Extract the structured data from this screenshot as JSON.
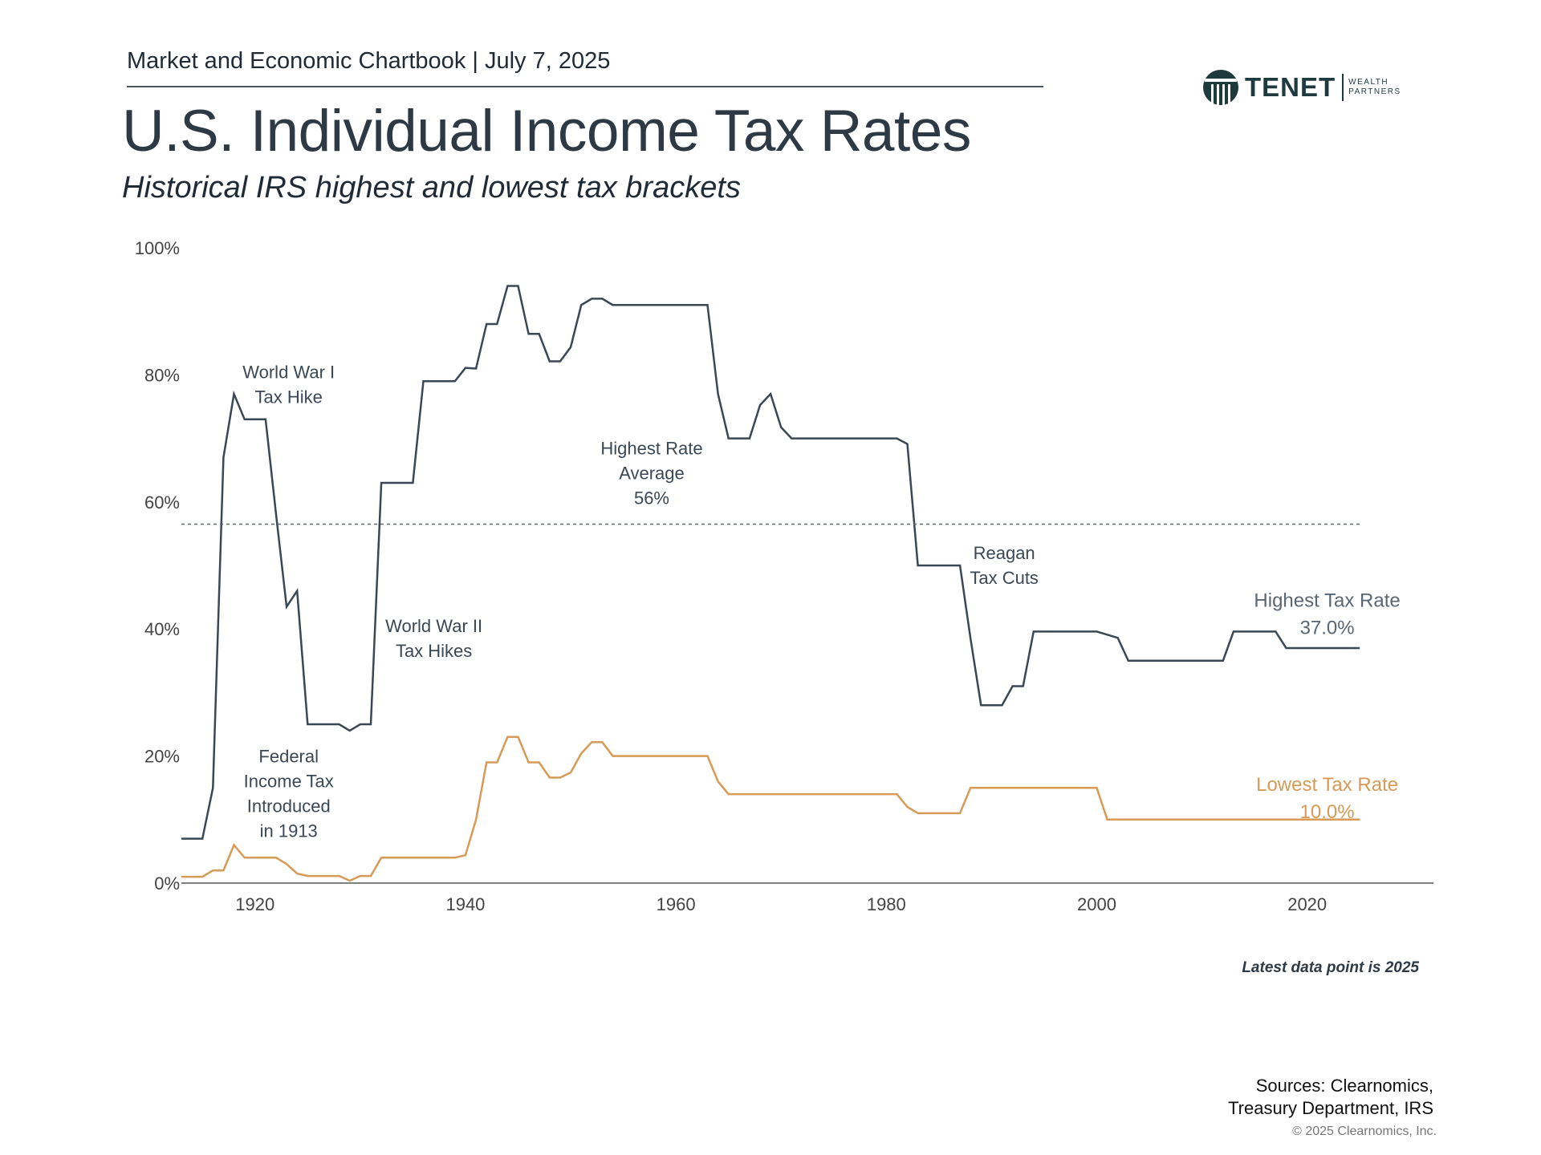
{
  "header": {
    "chartbook": "Market and Economic Chartbook | July 7, 2025",
    "title": "U.S. Individual Income Tax Rates",
    "subtitle": "Historical IRS highest and lowest tax brackets"
  },
  "logo": {
    "word": "TENET",
    "sub_line1": "WEALTH",
    "sub_line2": "PARTNERS",
    "icon": "tenet-logo-icon",
    "color": "#1f3a3f"
  },
  "chart_data": {
    "type": "line",
    "title": "U.S. Individual Income Tax Rates",
    "subtitle": "Historical IRS highest and lowest tax brackets",
    "xlabel": "",
    "ylabel": "",
    "xlim": [
      1913,
      2032
    ],
    "ylim": [
      0,
      100
    ],
    "x_ticks": [
      "1920",
      "1940",
      "1960",
      "1980",
      "2000",
      "2020"
    ],
    "y_ticks": [
      "0%",
      "20%",
      "40%",
      "60%",
      "80%",
      "100%"
    ],
    "grid": false,
    "series": [
      {
        "name": "Highest Tax Rate",
        "color": "#3a4755",
        "end_label": "37.0%",
        "points": [
          [
            1913,
            7
          ],
          [
            1915,
            7
          ],
          [
            1916,
            15
          ],
          [
            1917,
            67
          ],
          [
            1918,
            77
          ],
          [
            1919,
            73
          ],
          [
            1921,
            73
          ],
          [
            1922,
            58
          ],
          [
            1923,
            43.5
          ],
          [
            1924,
            46
          ],
          [
            1925,
            25
          ],
          [
            1928,
            25
          ],
          [
            1929,
            24
          ],
          [
            1930,
            25
          ],
          [
            1931,
            25
          ],
          [
            1932,
            63
          ],
          [
            1935,
            63
          ],
          [
            1936,
            79
          ],
          [
            1939,
            79
          ],
          [
            1940,
            81.1
          ],
          [
            1941,
            81
          ],
          [
            1942,
            88
          ],
          [
            1943,
            88
          ],
          [
            1944,
            94
          ],
          [
            1945,
            94
          ],
          [
            1946,
            86.45
          ],
          [
            1947,
            86.45
          ],
          [
            1948,
            82.13
          ],
          [
            1949,
            82.13
          ],
          [
            1950,
            84.36
          ],
          [
            1951,
            91
          ],
          [
            1952,
            92
          ],
          [
            1953,
            92
          ],
          [
            1954,
            91
          ],
          [
            1963,
            91
          ],
          [
            1964,
            77
          ],
          [
            1965,
            70
          ],
          [
            1967,
            70
          ],
          [
            1968,
            75.25
          ],
          [
            1969,
            77
          ],
          [
            1970,
            71.75
          ],
          [
            1971,
            70
          ],
          [
            1981,
            70
          ],
          [
            1982,
            69.13
          ],
          [
            1983,
            50
          ],
          [
            1987,
            50
          ],
          [
            1988,
            38.5
          ],
          [
            1989,
            28
          ],
          [
            1991,
            28
          ],
          [
            1992,
            31
          ],
          [
            1993,
            31
          ],
          [
            1994,
            39.6
          ],
          [
            2000,
            39.6
          ],
          [
            2001,
            39.1
          ],
          [
            2002,
            38.6
          ],
          [
            2003,
            35
          ],
          [
            2012,
            35
          ],
          [
            2013,
            39.6
          ],
          [
            2017,
            39.6
          ],
          [
            2018,
            37
          ],
          [
            2025,
            37
          ]
        ]
      },
      {
        "name": "Lowest Tax Rate",
        "color": "#d79a57",
        "end_label": "10.0%",
        "points": [
          [
            1913,
            1
          ],
          [
            1915,
            1
          ],
          [
            1916,
            2
          ],
          [
            1917,
            2
          ],
          [
            1918,
            6
          ],
          [
            1919,
            4
          ],
          [
            1922,
            4
          ],
          [
            1923,
            3
          ],
          [
            1924,
            1.5
          ],
          [
            1925,
            1.125
          ],
          [
            1928,
            1.125
          ],
          [
            1929,
            0.375
          ],
          [
            1930,
            1.125
          ],
          [
            1931,
            1.125
          ],
          [
            1932,
            4
          ],
          [
            1939,
            4
          ],
          [
            1940,
            4.4
          ],
          [
            1941,
            10
          ],
          [
            1942,
            19
          ],
          [
            1943,
            19
          ],
          [
            1944,
            23
          ],
          [
            1945,
            23
          ],
          [
            1946,
            19
          ],
          [
            1947,
            19
          ],
          [
            1948,
            16.6
          ],
          [
            1949,
            16.6
          ],
          [
            1950,
            17.4
          ],
          [
            1951,
            20.4
          ],
          [
            1952,
            22.2
          ],
          [
            1953,
            22.2
          ],
          [
            1954,
            20
          ],
          [
            1963,
            20
          ],
          [
            1964,
            16
          ],
          [
            1965,
            14
          ],
          [
            1981,
            14
          ],
          [
            1982,
            12
          ],
          [
            1983,
            11
          ],
          [
            1987,
            11
          ],
          [
            1988,
            15
          ],
          [
            2000,
            15
          ],
          [
            2001,
            10
          ],
          [
            2025,
            10
          ]
        ]
      },
      {
        "name": "Highest Rate Average",
        "color": "#5a6672",
        "dashed": true,
        "points": [
          [
            1913,
            56.5
          ],
          [
            2025,
            56.5
          ]
        ]
      }
    ],
    "annotations": [
      {
        "id": "ww1",
        "lines": [
          "World War I",
          "Tax Hike"
        ],
        "x": 1923.2,
        "y": 79.5
      },
      {
        "id": "ww2",
        "lines": [
          "World War II",
          "Tax Hikes"
        ],
        "x": 1937.0,
        "y": 39.5
      },
      {
        "id": "avg",
        "lines": [
          "Highest Rate",
          "Average",
          "56%"
        ],
        "x": 1957.7,
        "y": 67.5
      },
      {
        "id": "reagan",
        "lines": [
          "Reagan",
          "Tax Cuts"
        ],
        "x": 1991.2,
        "y": 51.0
      },
      {
        "id": "fed",
        "lines": [
          "Federal",
          "Income Tax",
          "Introduced",
          "in 1913"
        ],
        "x": 1923.2,
        "y": 19.0
      },
      {
        "id": "high_label",
        "lines": [
          "Highest Tax Rate",
          "37.0%"
        ],
        "x": 2021.9,
        "y": 43.5,
        "color": "#5a6672"
      },
      {
        "id": "low_label",
        "lines": [
          "Lowest Tax Rate",
          "10.0%"
        ],
        "x": 2021.9,
        "y": 14.5,
        "color": "#d79a57"
      }
    ]
  },
  "footer": {
    "latest": "Latest data point is 2025",
    "sources_line1": "Sources: Clearnomics,",
    "sources_line2": "Treasury Department, IRS",
    "copyright": "© 2025 Clearnomics, Inc."
  }
}
